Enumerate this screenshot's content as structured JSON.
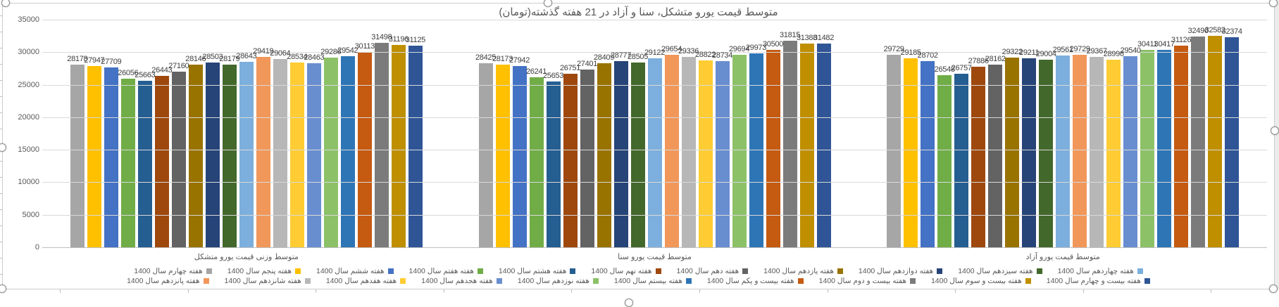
{
  "chart_data": {
    "type": "bar",
    "title": "متوسط قیمت یورو متشکل، سنا و آزاد در 21 هفته گذشته(تومان)",
    "categories": [
      "متوسط وزنی قیمت یورو متشکل",
      "متوسط قیمت یورو سنا",
      "متوسط قیمت یورو آزاد"
    ],
    "ylim": [
      0,
      35000
    ],
    "y_ticks": [
      0,
      5000,
      10000,
      15000,
      20000,
      25000,
      30000,
      35000
    ],
    "grid": true,
    "legend_position": "bottom",
    "value_labels": true,
    "rtl": true,
    "series": [
      {
        "name": "هفته چهارم سال 1400",
        "color": "#A6A6A6",
        "values": [
          28178,
          28425,
          29729
        ]
      },
      {
        "name": "هفته پنجم سال 1400",
        "color": "#FFC000",
        "values": [
          27947,
          28173,
          29185
        ]
      },
      {
        "name": "هفته ششم سال 1400",
        "color": "#4472C4",
        "values": [
          27709,
          27942,
          28702
        ]
      },
      {
        "name": "هفته هفتم سال 1400",
        "color": "#70AD47",
        "values": [
          26056,
          26241,
          26548
        ]
      },
      {
        "name": "هفته هشتم سال 1400",
        "color": "#255E91",
        "values": [
          25663,
          25653,
          26757
        ]
      },
      {
        "name": "هفته نهم سال 1400",
        "color": "#9E480E",
        "values": [
          26443,
          26751,
          27886
        ]
      },
      {
        "name": "هفته دهم سال 1400",
        "color": "#636363",
        "values": [
          27160,
          27401,
          28162
        ]
      },
      {
        "name": "هفته یازدهم سال 1400",
        "color": "#997300",
        "values": [
          28146,
          28409,
          29322
        ]
      },
      {
        "name": "هفته دوازدهم سال 1400",
        "color": "#264478",
        "values": [
          28503,
          28777,
          29211
        ]
      },
      {
        "name": "هفته سیزدهم سال 1400",
        "color": "#43682B",
        "values": [
          28179,
          28505,
          29004
        ]
      },
      {
        "name": "هفته چهاردهم سال 1400",
        "color": "#7CAFDD",
        "values": [
          28643,
          29122,
          29561
        ]
      },
      {
        "name": "هفته پانزدهم سال 1400",
        "color": "#F1975A",
        "values": [
          29419,
          29654,
          29729
        ]
      },
      {
        "name": "هفته شانزدهم سال 1400",
        "color": "#B7B7B7",
        "values": [
          29064,
          29336,
          29367
        ]
      },
      {
        "name": "هفته هفدهم سال 1400",
        "color": "#FFCD33",
        "values": [
          28534,
          28822,
          28996
        ]
      },
      {
        "name": "هفته هجدهم سال 1400",
        "color": "#698ED0",
        "values": [
          28463,
          28734,
          29540
        ]
      },
      {
        "name": "هفته نوزدهم سال 1400",
        "color": "#8CC168",
        "values": [
          29286,
          29694,
          30411
        ]
      },
      {
        "name": "هفته بیستم سال 1400",
        "color": "#2E75B6",
        "values": [
          29542,
          29973,
          30417
        ]
      },
      {
        "name": "هفته بیست و یکم سال 1400",
        "color": "#C55A11",
        "values": [
          30113,
          30500,
          31126
        ]
      },
      {
        "name": "هفته بیست و دوم سال 1400",
        "color": "#7B7B7B",
        "values": [
          31498,
          31815,
          32496
        ]
      },
      {
        "name": "هفته بیست و سوم سال 1400",
        "color": "#BF8F00",
        "values": [
          31196,
          31388,
          32582
        ]
      },
      {
        "name": "هفته بیست و چهارم سال 1400",
        "color": "#2F5597",
        "values": [
          31125,
          31482,
          32374
        ]
      }
    ]
  },
  "colors": {
    "title_text": "#595959",
    "axis_text": "#595959",
    "value_label_text": "#404040",
    "gridline": "#D9D9D9",
    "axis_line": "#BFBFBF"
  }
}
